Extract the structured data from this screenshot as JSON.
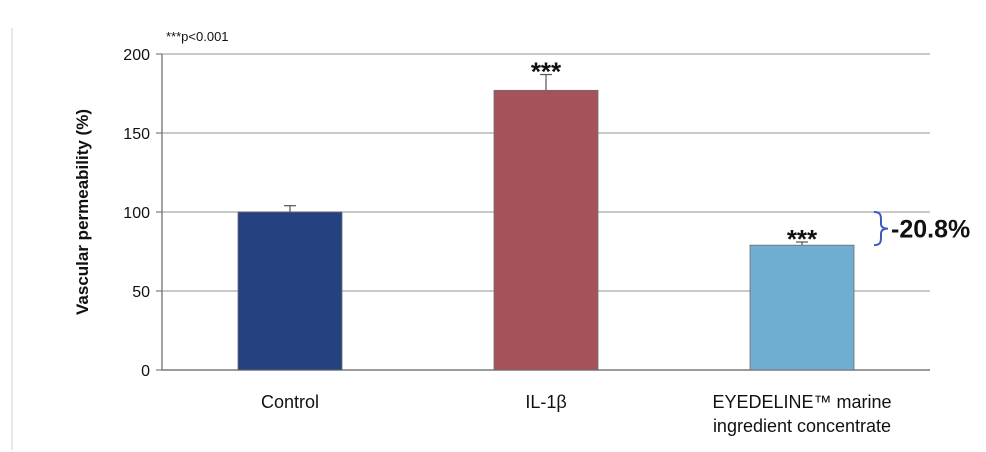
{
  "chart_data": {
    "type": "bar",
    "categories": [
      "Control",
      "IL-1β",
      "EYEDELINE™ marine ingredient concentrate"
    ],
    "category_lines": [
      [
        "Control"
      ],
      [
        "IL-1β"
      ],
      [
        "EYEDELINE™ marine",
        "ingredient concentrate"
      ]
    ],
    "values": [
      100,
      177,
      79
    ],
    "errors": [
      4,
      10,
      2
    ],
    "colors": [
      "#25417f",
      "#a6525b",
      "#70aed0"
    ],
    "significance": [
      "",
      "***",
      "***"
    ],
    "ylabel": "Vascular permeability (%)",
    "xlabel": "",
    "ylim": [
      0,
      200
    ],
    "yticks": [
      0,
      50,
      100,
      150,
      200
    ],
    "grid": true,
    "note": "***p<0.001",
    "annotation": {
      "text": "-20.8%",
      "bracket_color": "#3b5bbd",
      "from_value": 100,
      "to_value": 79
    }
  }
}
